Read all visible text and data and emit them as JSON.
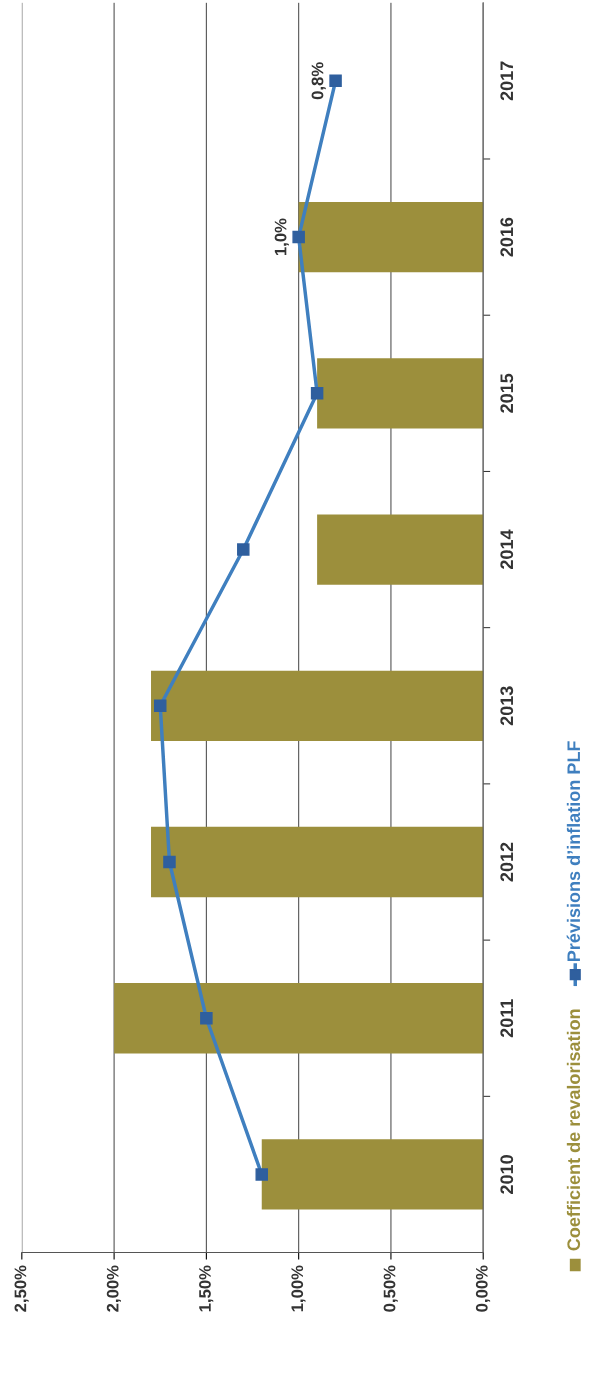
{
  "chart_data": {
    "type": "bar",
    "orientation": "horizontal",
    "categories": [
      "2017",
      "2016",
      "2015",
      "2014",
      "2013",
      "2012",
      "2011",
      "2010"
    ],
    "series": [
      {
        "name": "Coefficient de revalorisation",
        "color": "#9c8f3c",
        "values": [
          null,
          1.0,
          0.9,
          0.9,
          1.8,
          1.8,
          2.0,
          1.2
        ]
      },
      {
        "name": "Prévisions d’inflation PLF",
        "type": "line",
        "color": "#3f7fbf",
        "marker": "square",
        "values": [
          0.8,
          1.0,
          0.9,
          1.3,
          1.75,
          1.7,
          1.5,
          1.2
        ],
        "value_labels": [
          "0,8%",
          "1,0%",
          null,
          null,
          null,
          null,
          null,
          null
        ]
      }
    ],
    "xlim": [
      2.5,
      0
    ],
    "xticks": [
      {
        "value": 2.5,
        "label": "2,50%"
      },
      {
        "value": 2.0,
        "label": "2,00%"
      },
      {
        "value": 1.5,
        "label": "1,50%"
      },
      {
        "value": 1.0,
        "label": "1,00%"
      },
      {
        "value": 0.5,
        "label": "0,50%"
      },
      {
        "value": 0.0,
        "label": "0,00%"
      }
    ],
    "grid": "x",
    "legend": "right"
  }
}
